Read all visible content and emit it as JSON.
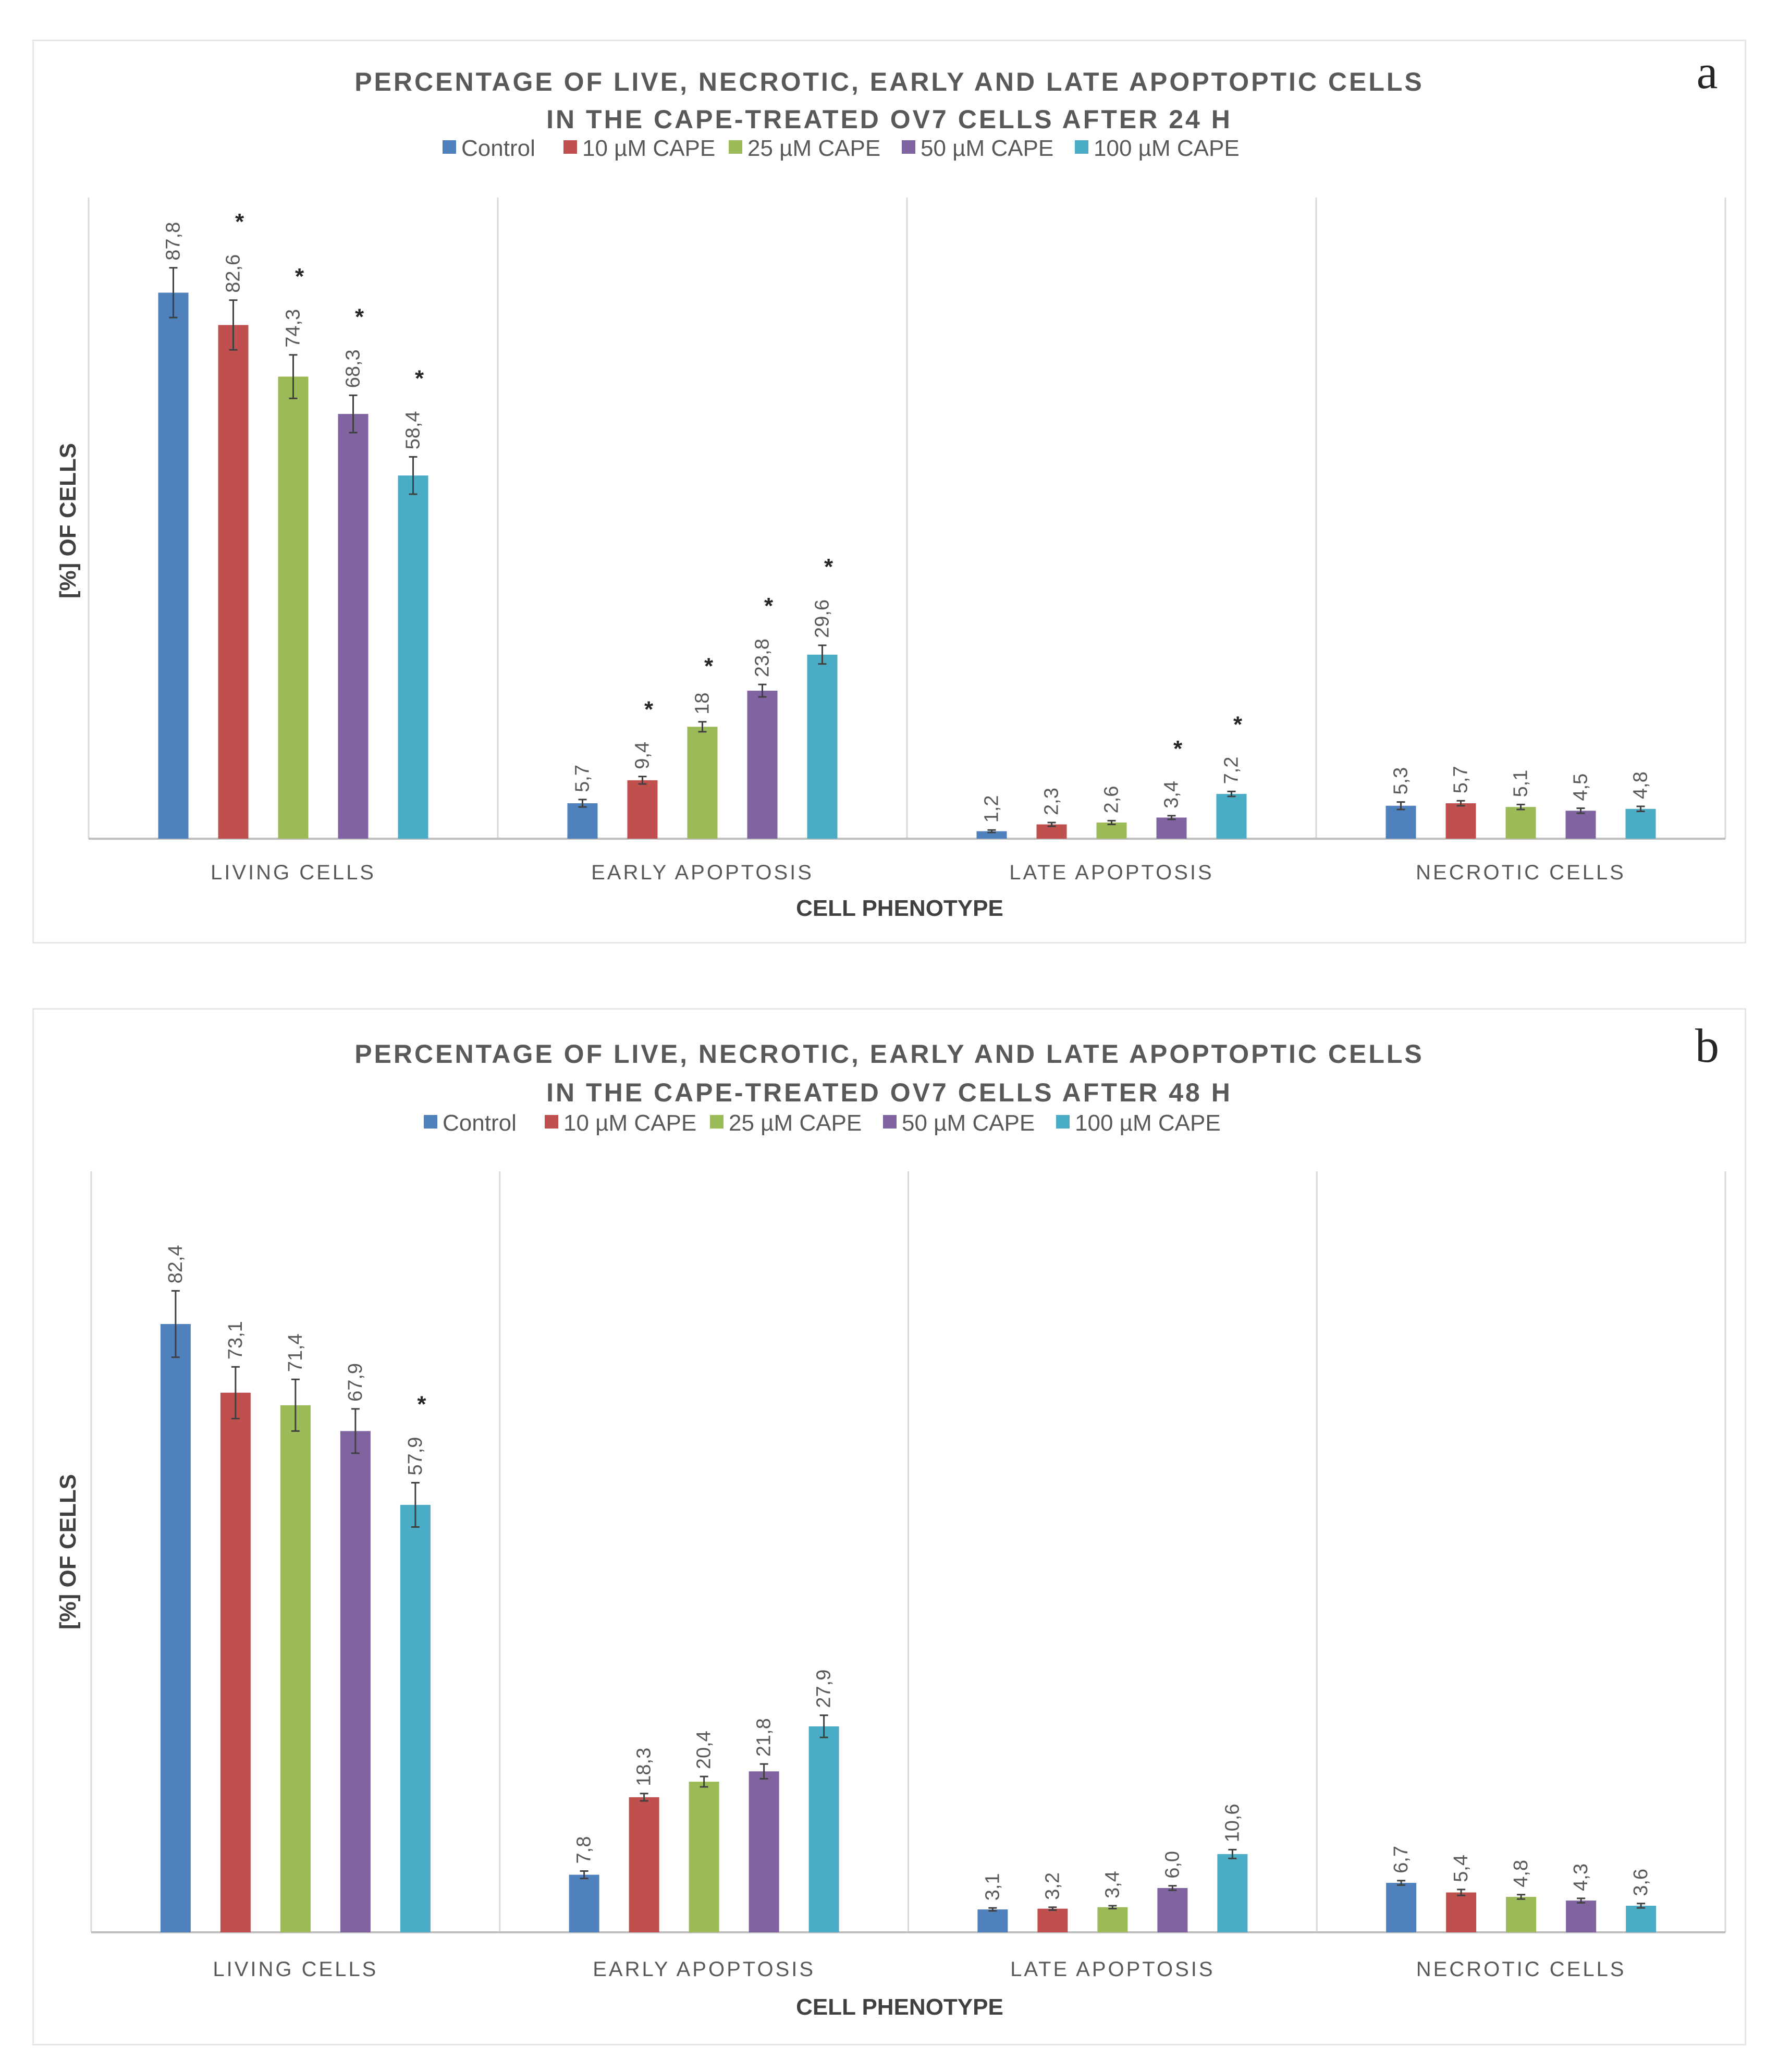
{
  "colors": {
    "Control": "#4f81bd",
    "10 µM CAPE": "#c0504d",
    "25 µM CAPE": "#9bbb59",
    "50 µM CAPE": "#8064a2",
    "100 µM CAPE": "#4bacc6",
    "grid": "#d9d9d9",
    "axis": "#bfbfbf",
    "error": "#404040"
  },
  "chart_data": [
    {
      "panel_letter": "a",
      "type": "bar",
      "title_lines": [
        "PERCENTAGE OF LIVE, NECROTIC, EARLY AND LATE APOPTOPTIC CELLS",
        "IN THE CAPE-TREATED OV7 CELLS AFTER 24 H"
      ],
      "legend": [
        "Control",
        "10 µM CAPE",
        "25  µM CAPE",
        "50  µM CAPE",
        "100  µM CAPE"
      ],
      "categories": [
        "LIVING CELLS",
        "EARLY APOPTOSIS",
        "LATE APOPTOSIS",
        "NECROTIC CELLS"
      ],
      "xlabel": "CELL PHENOTYPE",
      "ylabel": "[%] OF CELLS",
      "ylim": [
        0,
        100
      ],
      "series": [
        {
          "name": "Control",
          "values": [
            87.8,
            5.7,
            1.2,
            5.3
          ],
          "labels": [
            "87,8",
            "5,7",
            "1,2",
            "5,3"
          ],
          "errors": [
            4.0,
            0.6,
            0.2,
            0.6
          ],
          "significant": [
            false,
            false,
            false,
            false
          ]
        },
        {
          "name": "10 µM CAPE",
          "values": [
            82.6,
            9.4,
            2.3,
            5.7
          ],
          "labels": [
            "82,6",
            "9,4",
            "2,3",
            "5,7"
          ],
          "errors": [
            4.0,
            0.6,
            0.3,
            0.4
          ],
          "significant": [
            true,
            true,
            false,
            false
          ]
        },
        {
          "name": "25 µM CAPE",
          "values": [
            74.3,
            18.0,
            2.6,
            5.1
          ],
          "labels": [
            "74,3",
            "18",
            "2,6",
            "5,1"
          ],
          "errors": [
            3.5,
            0.8,
            0.3,
            0.4
          ],
          "significant": [
            true,
            true,
            false,
            false
          ]
        },
        {
          "name": "50 µM CAPE",
          "values": [
            68.3,
            23.8,
            3.4,
            4.5
          ],
          "labels": [
            "68,3",
            "23,8",
            "3,4",
            "4,5"
          ],
          "errors": [
            3.0,
            1.0,
            0.3,
            0.4
          ],
          "significant": [
            true,
            true,
            true,
            false
          ]
        },
        {
          "name": "100 µM CAPE",
          "values": [
            58.4,
            29.6,
            7.2,
            4.8
          ],
          "labels": [
            "58,4",
            "29,6",
            "7,2",
            "4,8"
          ],
          "errors": [
            3.0,
            1.5,
            0.4,
            0.4
          ],
          "significant": [
            true,
            true,
            true,
            false
          ]
        }
      ]
    },
    {
      "panel_letter": "b",
      "type": "bar",
      "title_lines": [
        "PERCENTAGE OF LIVE, NECROTIC, EARLY AND LATE APOPTOPTIC CELLS",
        "IN THE CAPE-TREATED OV7 CELLS AFTER 48 H"
      ],
      "legend": [
        "Control",
        "10 µM CAPE",
        "25  µM CAPE",
        "50  µM CAPE",
        "100  µM CAPE"
      ],
      "categories": [
        "LIVING CELLS",
        "EARLY APOPTOSIS",
        "LATE APOPTOSIS",
        "NECROTIC CELLS"
      ],
      "xlabel": "CELL PHENOTYPE",
      "ylabel": "[%] OF CELLS",
      "ylim": [
        0,
        100
      ],
      "series": [
        {
          "name": "Control",
          "values": [
            82.4,
            7.8,
            3.1,
            6.7
          ],
          "labels": [
            "82,4",
            "7,8",
            "3,1",
            "6,7"
          ],
          "errors": [
            4.5,
            0.5,
            0.2,
            0.3
          ],
          "significant": [
            false,
            false,
            false,
            false
          ]
        },
        {
          "name": "10 µM CAPE",
          "values": [
            73.1,
            18.3,
            3.2,
            5.4
          ],
          "labels": [
            "73,1",
            "18,3",
            "3,2",
            "5,4"
          ],
          "errors": [
            3.5,
            0.5,
            0.2,
            0.4
          ],
          "significant": [
            false,
            false,
            false,
            false
          ]
        },
        {
          "name": "25 µM CAPE",
          "values": [
            71.4,
            20.4,
            3.4,
            4.8
          ],
          "labels": [
            "71,4",
            "20,4",
            "3,4",
            "4,8"
          ],
          "errors": [
            3.5,
            0.7,
            0.2,
            0.3
          ],
          "significant": [
            false,
            false,
            false,
            false
          ]
        },
        {
          "name": "50 µM CAPE",
          "values": [
            67.9,
            21.8,
            6.0,
            4.3
          ],
          "labels": [
            "67,9",
            "21,8",
            "6,0",
            "4,3"
          ],
          "errors": [
            3.0,
            1.0,
            0.3,
            0.3
          ],
          "significant": [
            false,
            false,
            false,
            false
          ]
        },
        {
          "name": "100 µM CAPE",
          "values": [
            57.9,
            27.9,
            10.6,
            3.6
          ],
          "labels": [
            "57,9",
            "27,9",
            "10,6",
            "3,6"
          ],
          "errors": [
            3.0,
            1.5,
            0.6,
            0.3
          ],
          "significant": [
            true,
            false,
            false,
            false
          ]
        }
      ]
    }
  ]
}
